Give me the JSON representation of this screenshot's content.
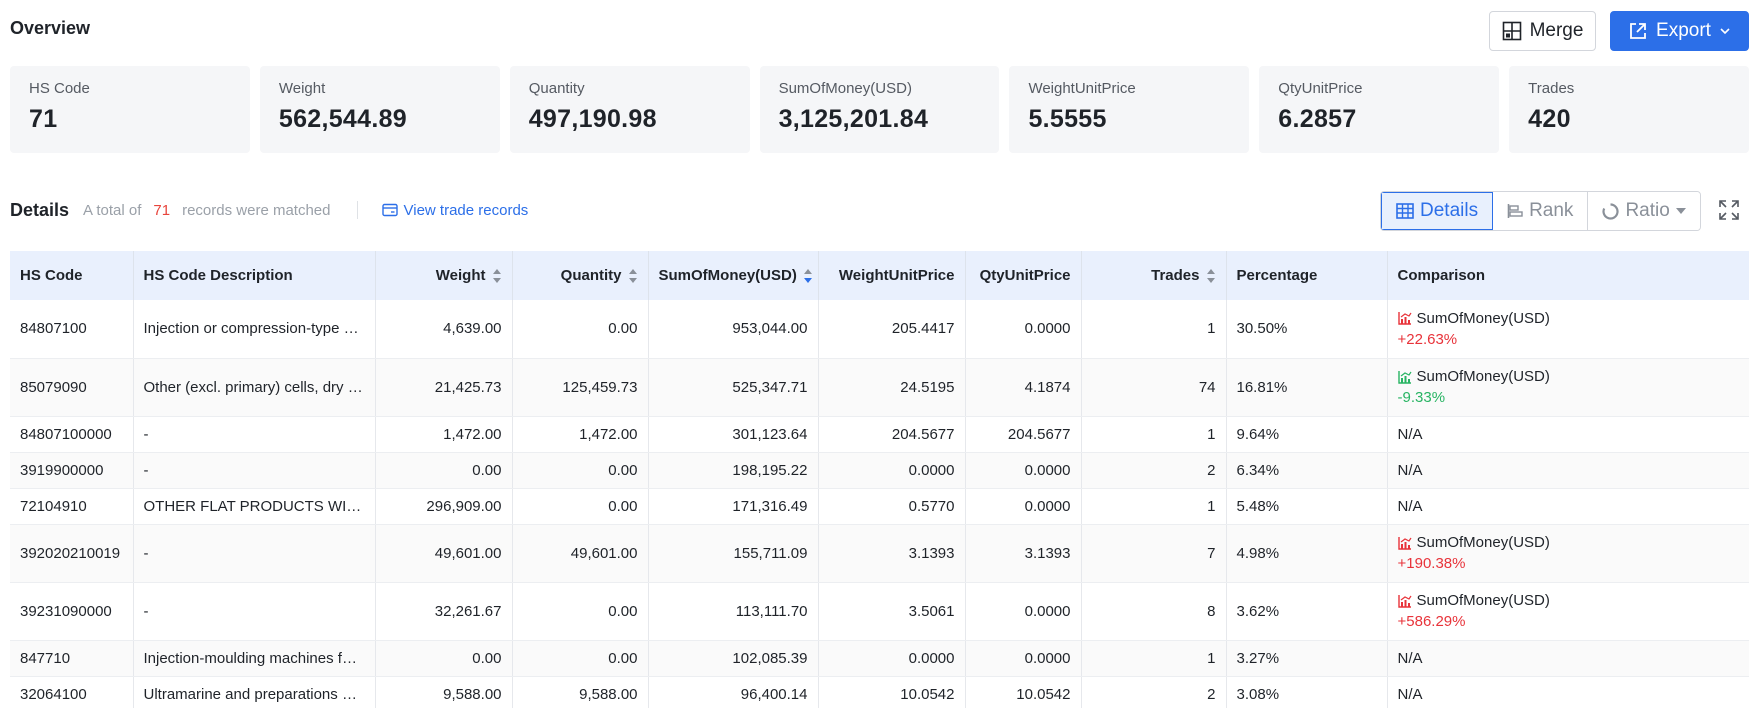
{
  "overview": {
    "title": "Overview"
  },
  "toolbar": {
    "merge_label": "Merge",
    "export_label": "Export"
  },
  "summary": [
    {
      "label": "HS Code",
      "value": "71"
    },
    {
      "label": "Weight",
      "value": "562,544.89"
    },
    {
      "label": "Quantity",
      "value": "497,190.98"
    },
    {
      "label": "SumOfMoney(USD)",
      "value": "3,125,201.84"
    },
    {
      "label": "WeightUnitPrice",
      "value": "5.5555"
    },
    {
      "label": "QtyUnitPrice",
      "value": "6.2857"
    },
    {
      "label": "Trades",
      "value": "420"
    }
  ],
  "details": {
    "title": "Details",
    "total_prefix": "A total of",
    "count": "71",
    "total_suffix": "records were matched",
    "view_link": "View trade records"
  },
  "views": {
    "details": "Details",
    "rank": "Rank",
    "ratio": "Ratio"
  },
  "colors": {
    "accent": "#2c6fe8",
    "up": "#e8333a",
    "down": "#28b463",
    "header_bg": "#e9f0fd"
  },
  "table": {
    "headers": [
      "HS Code",
      "HS Code Description",
      "Weight",
      "Quantity",
      "SumOfMoney(USD)",
      "WeightUnitPrice",
      "QtyUnitPrice",
      "Trades",
      "Percentage",
      "Comparison"
    ],
    "rows": [
      {
        "code": "84807100",
        "desc": "Injection or compression-type mou...",
        "weight": "4,639.00",
        "qty": "0.00",
        "sum": "953,044.00",
        "wup": "205.4417",
        "qup": "0.0000",
        "trades": "1",
        "pct": "30.50%",
        "cmp_label": "SumOfMoney(USD)",
        "cmp_value": "+22.63%",
        "cmp_dir": "up"
      },
      {
        "code": "85079090",
        "desc": "Other (excl. primary) cells, dry (e.g. ...",
        "weight": "21,425.73",
        "qty": "125,459.73",
        "sum": "525,347.71",
        "wup": "24.5195",
        "qup": "4.1874",
        "trades": "74",
        "pct": "16.81%",
        "cmp_label": "SumOfMoney(USD)",
        "cmp_value": "-9.33%",
        "cmp_dir": "down"
      },
      {
        "code": "84807100000",
        "desc": "-",
        "weight": "1,472.00",
        "qty": "1,472.00",
        "sum": "301,123.64",
        "wup": "204.5677",
        "qup": "204.5677",
        "trades": "1",
        "pct": "9.64%",
        "cmp_label": "N/A",
        "cmp_value": "",
        "cmp_dir": "none"
      },
      {
        "code": "3919900000",
        "desc": "-",
        "weight": "0.00",
        "qty": "0.00",
        "sum": "198,195.22",
        "wup": "0.0000",
        "qup": "0.0000",
        "trades": "2",
        "pct": "6.34%",
        "cmp_label": "N/A",
        "cmp_value": "",
        "cmp_dir": "none"
      },
      {
        "code": "72104910",
        "desc": "OTHER FLAT PRODUCTS WITHOUT ...",
        "weight": "296,909.00",
        "qty": "0.00",
        "sum": "171,316.49",
        "wup": "0.5770",
        "qup": "0.0000",
        "trades": "1",
        "pct": "5.48%",
        "cmp_label": "N/A",
        "cmp_value": "",
        "cmp_dir": "none"
      },
      {
        "code": "392020210019",
        "desc": "-",
        "weight": "49,601.00",
        "qty": "49,601.00",
        "sum": "155,711.09",
        "wup": "3.1393",
        "qup": "3.1393",
        "trades": "7",
        "pct": "4.98%",
        "cmp_label": "SumOfMoney(USD)",
        "cmp_value": "+190.38%",
        "cmp_dir": "up"
      },
      {
        "code": "39231090000",
        "desc": "-",
        "weight": "32,261.67",
        "qty": "0.00",
        "sum": "113,111.70",
        "wup": "3.5061",
        "qup": "0.0000",
        "trades": "8",
        "pct": "3.62%",
        "cmp_label": "SumOfMoney(USD)",
        "cmp_value": "+586.29%",
        "cmp_dir": "up"
      },
      {
        "code": "847710",
        "desc": "Injection-moulding machines for w...",
        "weight": "0.00",
        "qty": "0.00",
        "sum": "102,085.39",
        "wup": "0.0000",
        "qup": "0.0000",
        "trades": "1",
        "pct": "3.27%",
        "cmp_label": "N/A",
        "cmp_value": "",
        "cmp_dir": "none"
      },
      {
        "code": "32064100",
        "desc": "Ultramarine and preparations base...",
        "weight": "9,588.00",
        "qty": "9,588.00",
        "sum": "96,400.14",
        "wup": "10.0542",
        "qup": "10.0542",
        "trades": "2",
        "pct": "3.08%",
        "cmp_label": "N/A",
        "cmp_value": "",
        "cmp_dir": "none"
      }
    ]
  }
}
